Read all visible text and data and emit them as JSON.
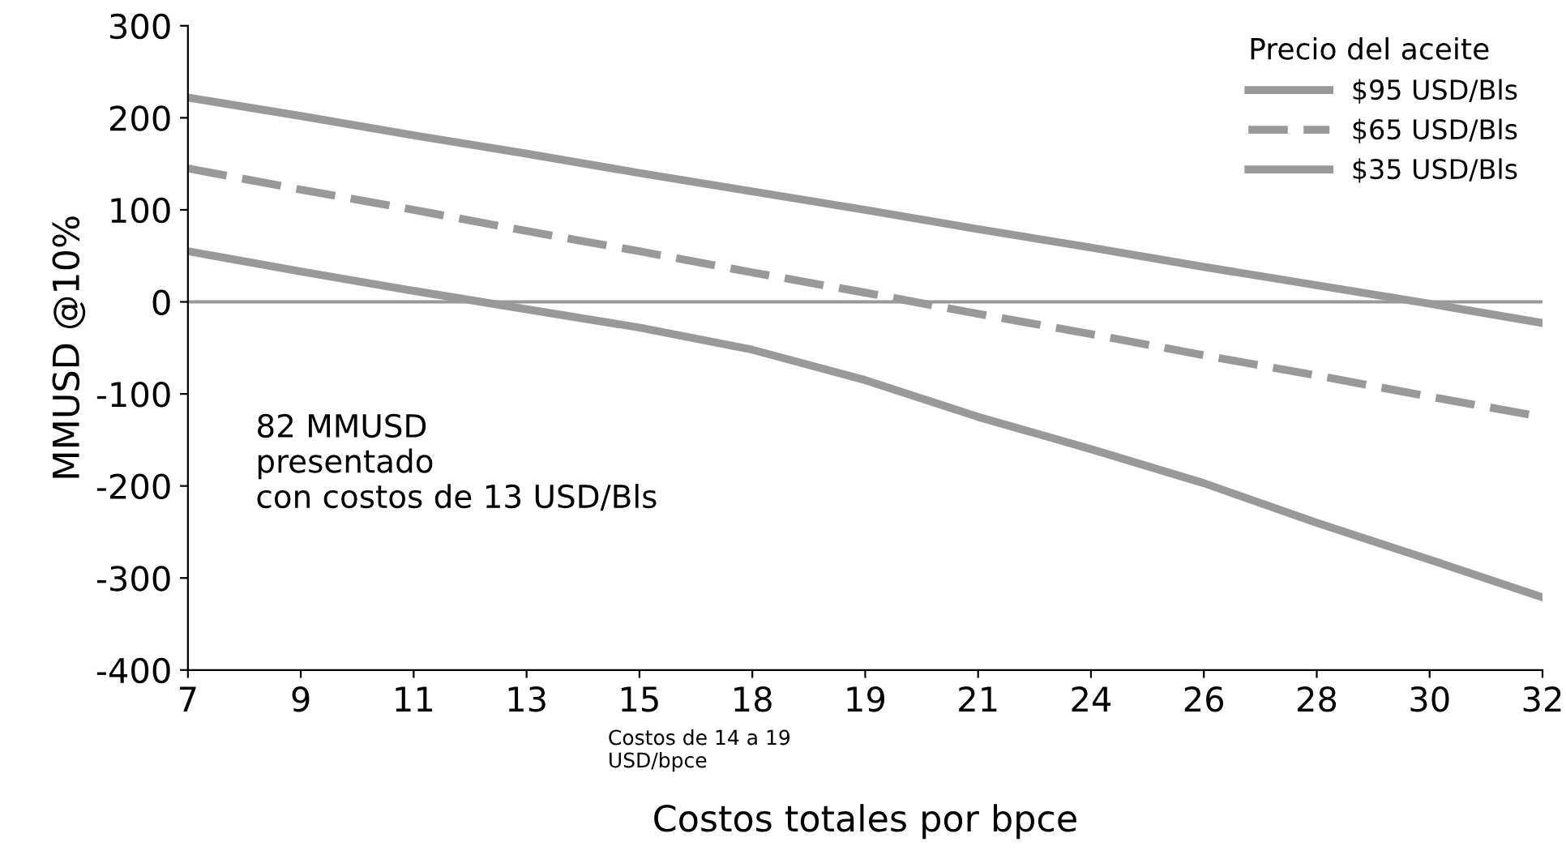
{
  "chart_data": {
    "type": "line",
    "xlabel": "Costos totales por bpce",
    "ylabel": "MMUSD @10%",
    "legend_title": "Precio del aceite",
    "legend": "top right",
    "grid": false,
    "categories": [
      "7",
      "9",
      "11",
      "13",
      "15",
      "18",
      "19",
      "21",
      "24",
      "26",
      "28",
      "30",
      "32"
    ],
    "ylim": [
      -400,
      300
    ],
    "yticks": [
      -400,
      -300,
      -200,
      -100,
      0,
      100,
      200,
      300
    ],
    "series": [
      {
        "name": "$95 USD/Bls",
        "color": "#999999",
        "line_style": "solid",
        "values": [
          222,
          202,
          181,
          161,
          140,
          120,
          100,
          79,
          59,
          38,
          18,
          -2,
          -23
        ]
      },
      {
        "name": "$65 USD/Bls",
        "color": "#999999",
        "line_style": "dashed",
        "values": [
          145,
          122,
          100,
          77,
          55,
          32,
          10,
          -13,
          -35,
          -58,
          -80,
          -103,
          -125
        ]
      },
      {
        "name": "$35 USD/Bls",
        "color": "#999999",
        "line_style": "solid",
        "values": [
          55,
          33,
          12,
          -8,
          -28,
          -52,
          -85,
          -125,
          -160,
          -197,
          -240,
          -280,
          -321
        ]
      }
    ],
    "ref_lines": [
      {
        "axis": "y",
        "value": 0,
        "color": "#999999"
      }
    ],
    "annotations": [
      "82 MMUSD\npresentado\ncon costos de 13 USD/Bls",
      "Costos de 14 a 19\nUSD/bpce"
    ]
  }
}
